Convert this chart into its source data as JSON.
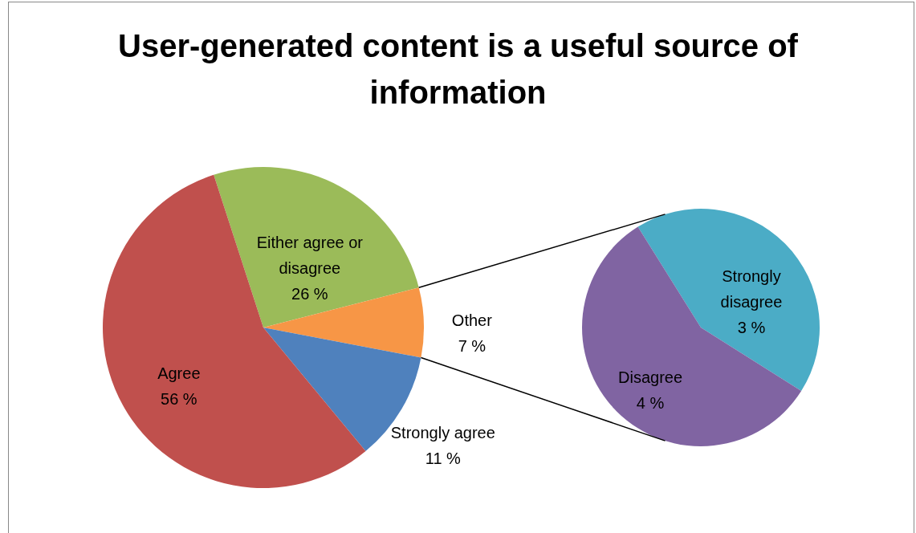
{
  "chart_data": [
    {
      "type": "pie",
      "title": "User-generated content is a useful source of information",
      "categories": [
        "Either agree or disagree",
        "Other",
        "Strongly agree",
        "Agree"
      ],
      "values": [
        26,
        7,
        11,
        56
      ],
      "colors": [
        "#9bbb59",
        "#f79646",
        "#4f81bd",
        "#c0504d"
      ],
      "value_labels": [
        "26 %",
        "7 %",
        "11 %",
        "56 %"
      ]
    },
    {
      "type": "pie",
      "categories": [
        "Strongly disagree",
        "Disagree"
      ],
      "values": [
        3,
        4
      ],
      "colors": [
        "#4bacc6",
        "#8064a2"
      ],
      "value_labels": [
        "3 %",
        "4 %"
      ]
    }
  ]
}
